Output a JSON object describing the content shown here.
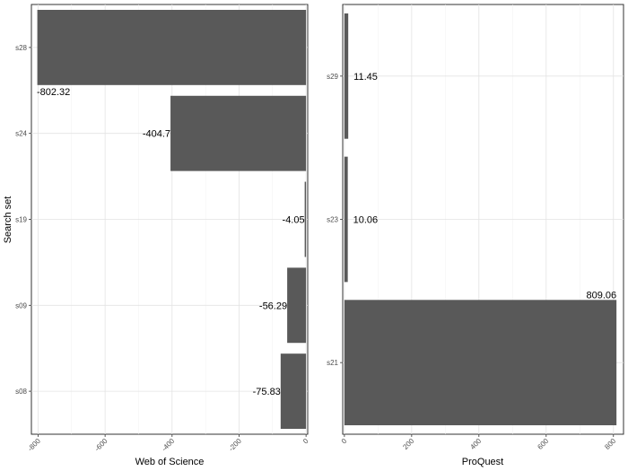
{
  "chart_data": [
    {
      "type": "bar",
      "orientation": "horizontal",
      "categories": [
        "s28",
        "s24",
        "s19",
        "s09",
        "s08"
      ],
      "values": [
        -802.32,
        -404.7,
        -4.05,
        -56.29,
        -75.83
      ],
      "value_labels": [
        "-802.32",
        "-404.7",
        "-4.05",
        "-56.29",
        "-75.83"
      ],
      "xlabel": "Web of Science",
      "ylabel": "Search set",
      "xlim": [
        -820,
        5
      ],
      "xticks": [
        -800,
        -600,
        -400,
        -200,
        0
      ],
      "xtick_labels": [
        "-800",
        "-600",
        "-400",
        "-200",
        "0"
      ],
      "grid": true,
      "bar_color": "#595959"
    },
    {
      "type": "bar",
      "orientation": "horizontal",
      "categories": [
        "s29",
        "s23",
        "s21"
      ],
      "values": [
        11.45,
        10.06,
        809.06
      ],
      "value_labels": [
        "11.45",
        "10.06",
        "809.06"
      ],
      "xlabel": "ProQuest",
      "ylabel": "",
      "xlim": [
        -5,
        830
      ],
      "xticks": [
        0,
        200,
        400,
        600,
        800
      ],
      "xtick_labels": [
        "0",
        "200",
        "400",
        "600",
        "800"
      ],
      "grid": true,
      "bar_color": "#595959"
    }
  ]
}
